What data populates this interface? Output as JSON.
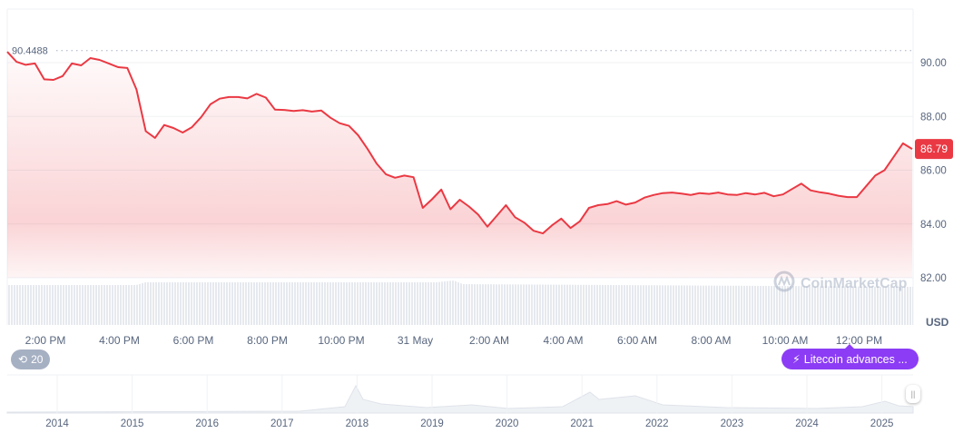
{
  "chart_data": {
    "type": "area",
    "series_color": "#ea3943",
    "ylim": [
      81.5,
      91.2
    ],
    "y_ticks": [
      "90.00",
      "88.00",
      "86.00",
      "84.00",
      "82.00"
    ],
    "y_tick_values": [
      90,
      88,
      86,
      84,
      82
    ],
    "y_unit": "USD",
    "x_ticks": [
      "2:00 PM",
      "4:00 PM",
      "6:00 PM",
      "8:00 PM",
      "10:00 PM",
      "31 May",
      "2:00 AM",
      "4:00 AM",
      "6:00 AM",
      "8:00 AM",
      "10:00 AM",
      "12:00 PM"
    ],
    "high_marker": {
      "label": "90.4488",
      "value": 90.4488
    },
    "current_price": {
      "label": "86.79",
      "value": 86.79
    },
    "grid": true,
    "points": [
      [
        "13:00",
        90.4
      ],
      [
        "13:15",
        90.03
      ],
      [
        "13:30",
        89.92
      ],
      [
        "13:45",
        89.97
      ],
      [
        "14:00",
        89.38
      ],
      [
        "14:15",
        89.36
      ],
      [
        "14:30",
        89.5
      ],
      [
        "14:45",
        89.97
      ],
      [
        "15:00",
        89.9
      ],
      [
        "15:15",
        90.17
      ],
      [
        "15:30",
        90.1
      ],
      [
        "15:45",
        89.97
      ],
      [
        "16:00",
        89.83
      ],
      [
        "16:15",
        89.8
      ],
      [
        "16:30",
        89.0
      ],
      [
        "16:45",
        87.45
      ],
      [
        "17:00",
        87.2
      ],
      [
        "17:15",
        87.68
      ],
      [
        "17:30",
        87.57
      ],
      [
        "17:45",
        87.4
      ],
      [
        "18:00",
        87.6
      ],
      [
        "18:15",
        87.97
      ],
      [
        "18:30",
        88.45
      ],
      [
        "18:45",
        88.66
      ],
      [
        "19:00",
        88.72
      ],
      [
        "19:15",
        88.72
      ],
      [
        "19:30",
        88.67
      ],
      [
        "19:45",
        88.84
      ],
      [
        "20:00",
        88.7
      ],
      [
        "20:15",
        88.25
      ],
      [
        "20:30",
        88.24
      ],
      [
        "20:45",
        88.2
      ],
      [
        "21:00",
        88.23
      ],
      [
        "21:15",
        88.18
      ],
      [
        "21:30",
        88.22
      ],
      [
        "21:45",
        87.95
      ],
      [
        "22:00",
        87.75
      ],
      [
        "22:15",
        87.65
      ],
      [
        "22:30",
        87.3
      ],
      [
        "22:45",
        86.8
      ],
      [
        "23:00",
        86.25
      ],
      [
        "23:15",
        85.85
      ],
      [
        "23:30",
        85.72
      ],
      [
        "23:45",
        85.8
      ],
      [
        "00:00",
        85.74
      ],
      [
        "00:15",
        84.6
      ],
      [
        "00:30",
        84.92
      ],
      [
        "00:45",
        85.28
      ],
      [
        "01:00",
        84.55
      ],
      [
        "01:15",
        84.9
      ],
      [
        "01:30",
        84.65
      ],
      [
        "01:45",
        84.35
      ],
      [
        "02:00",
        83.9
      ],
      [
        "02:15",
        84.3
      ],
      [
        "02:30",
        84.7
      ],
      [
        "02:45",
        84.25
      ],
      [
        "03:00",
        84.05
      ],
      [
        "03:15",
        83.75
      ],
      [
        "03:30",
        83.65
      ],
      [
        "03:45",
        83.95
      ],
      [
        "04:00",
        84.2
      ],
      [
        "04:15",
        83.85
      ],
      [
        "04:30",
        84.1
      ],
      [
        "04:45",
        84.6
      ],
      [
        "05:00",
        84.7
      ],
      [
        "05:15",
        84.74
      ],
      [
        "05:30",
        84.85
      ],
      [
        "05:45",
        84.72
      ],
      [
        "06:00",
        84.8
      ],
      [
        "06:15",
        84.98
      ],
      [
        "06:30",
        85.08
      ],
      [
        "06:45",
        85.15
      ],
      [
        "07:00",
        85.17
      ],
      [
        "07:15",
        85.13
      ],
      [
        "07:30",
        85.08
      ],
      [
        "07:45",
        85.15
      ],
      [
        "08:00",
        85.12
      ],
      [
        "08:15",
        85.17
      ],
      [
        "08:30",
        85.1
      ],
      [
        "08:45",
        85.08
      ],
      [
        "09:00",
        85.15
      ],
      [
        "09:15",
        85.1
      ],
      [
        "09:30",
        85.16
      ],
      [
        "09:45",
        85.03
      ],
      [
        "10:00",
        85.1
      ],
      [
        "10:15",
        85.3
      ],
      [
        "10:30",
        85.5
      ],
      [
        "10:45",
        85.25
      ],
      [
        "11:00",
        85.18
      ],
      [
        "11:15",
        85.13
      ],
      [
        "11:30",
        85.05
      ],
      [
        "11:45",
        85.0
      ],
      [
        "12:00",
        85.0
      ],
      [
        "12:15",
        85.4
      ],
      [
        "12:30",
        85.8
      ],
      [
        "12:45",
        86.0
      ],
      [
        "13:00",
        86.5
      ],
      [
        "13:15",
        87.0
      ],
      [
        "13:30",
        86.79
      ]
    ],
    "navigator_years": [
      "2014",
      "2015",
      "2016",
      "2017",
      "2018",
      "2019",
      "2020",
      "2021",
      "2022",
      "2023",
      "2024",
      "2025"
    ]
  },
  "watermark": "CoinMarketCap",
  "history_button": {
    "icon": "history-icon",
    "label": "20"
  },
  "news_pill": {
    "icon": "lightning-icon",
    "label": "Litecoin advances ...",
    "color": "#8c3cf5"
  }
}
